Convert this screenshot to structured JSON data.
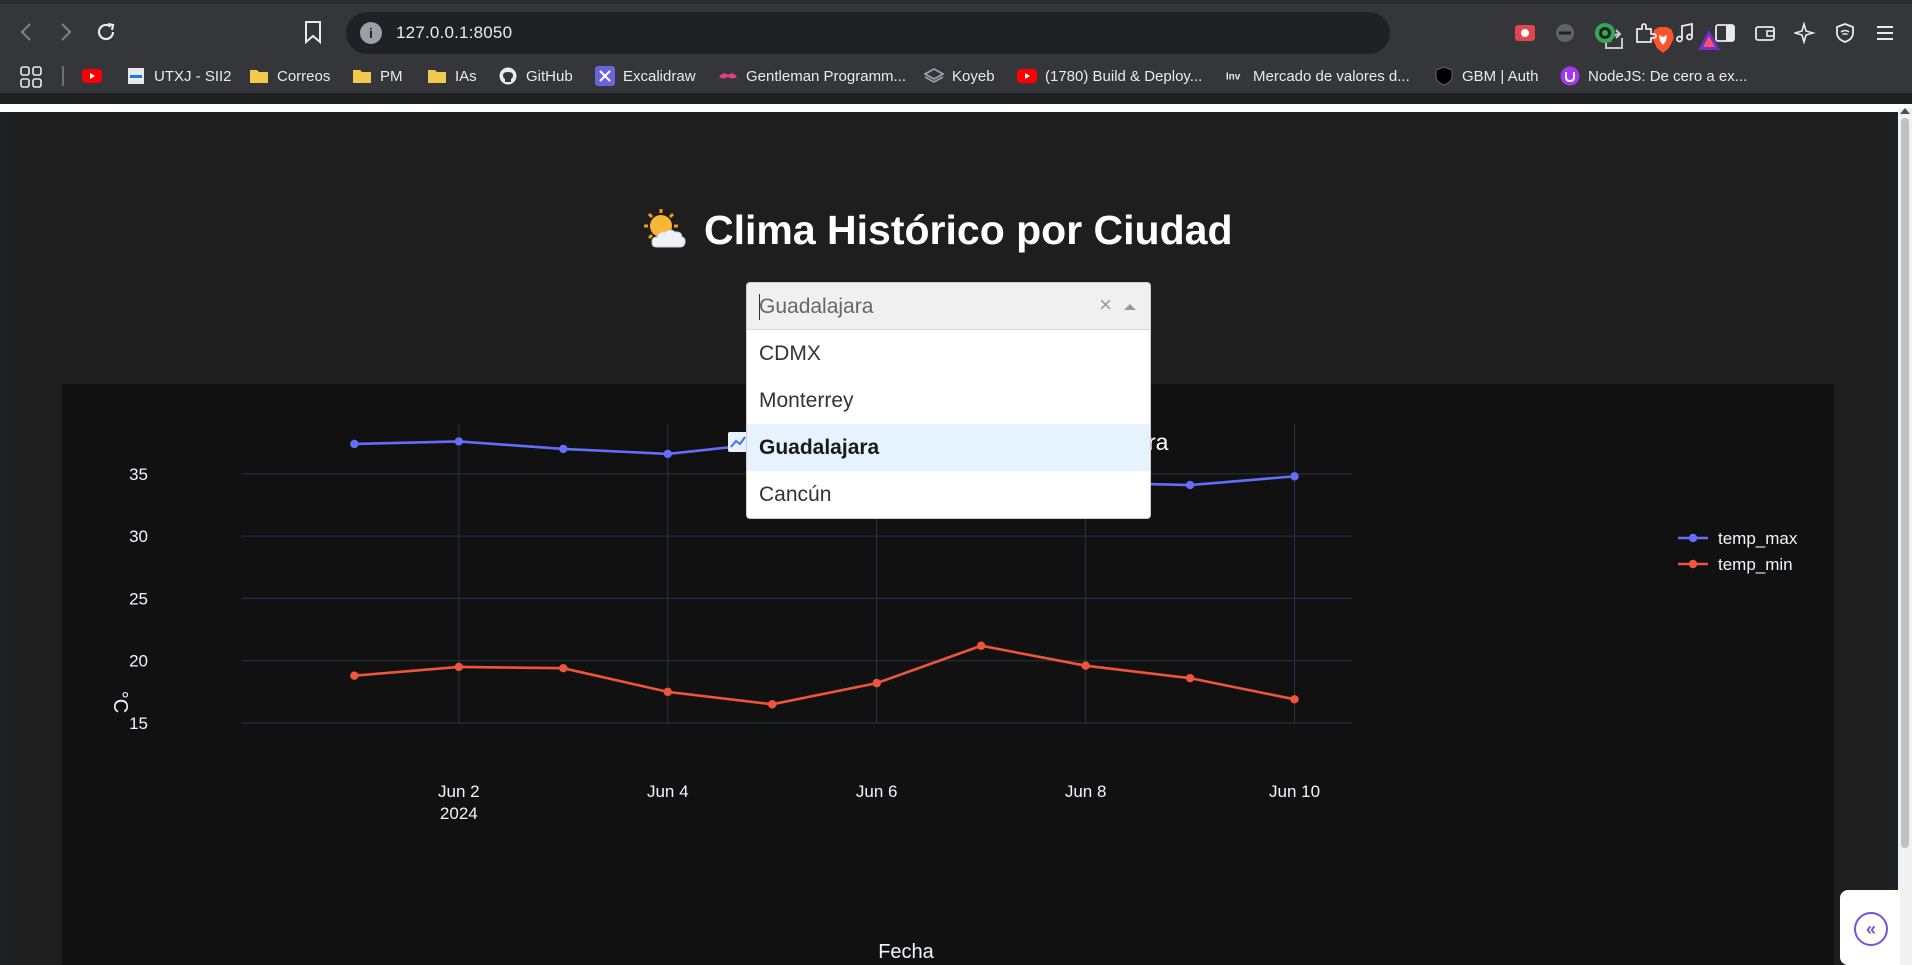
{
  "browser": {
    "url": "127.0.0.1:8050",
    "bookmarks": [
      {
        "label": "",
        "icon": "youtube-icon"
      },
      {
        "label": "UTXJ - SII2",
        "icon": "page-icon"
      },
      {
        "label": "Correos",
        "icon": "folder-icon"
      },
      {
        "label": "PM",
        "icon": "folder-icon"
      },
      {
        "label": "IAs",
        "icon": "folder-icon"
      },
      {
        "label": "GitHub",
        "icon": "github-icon"
      },
      {
        "label": "Excalidraw",
        "icon": "excalidraw-icon"
      },
      {
        "label": "Gentleman Programm...",
        "icon": "mustache-icon"
      },
      {
        "label": "Koyeb",
        "icon": "koyeb-icon"
      },
      {
        "label": "(1780) Build & Deploy...",
        "icon": "youtube-icon"
      },
      {
        "label": "Mercado de valores d...",
        "icon": "investing-icon"
      },
      {
        "label": "GBM | Auth",
        "icon": "shield-icon"
      },
      {
        "label": "NodeJS: De cero a ex...",
        "icon": "udemy-icon"
      }
    ]
  },
  "app": {
    "title": "Clima Histórico por Ciudad",
    "title_icon": "sun-behind-cloud-icon",
    "chart_title_suffix": "ra"
  },
  "dropdown": {
    "value": "Guadalajara",
    "clear_symbol": "×",
    "options": [
      "CDMX",
      "Monterrey",
      "Guadalajara",
      "Cancún"
    ],
    "selected_index": 2
  },
  "chart_data": {
    "type": "line",
    "x": [
      "2024-06-01",
      "2024-06-02",
      "2024-06-03",
      "2024-06-04",
      "2024-06-05",
      "2024-06-06",
      "2024-06-07",
      "2024-06-08",
      "2024-06-09",
      "2024-06-10"
    ],
    "series": [
      {
        "name": "temp_max",
        "color": "#636efa",
        "values": [
          37.4,
          37.6,
          37.0,
          36.6,
          37.5,
          37.0,
          34.7,
          34.3,
          34.1,
          34.8
        ]
      },
      {
        "name": "temp_min",
        "color": "#ef553b",
        "values": [
          18.8,
          19.5,
          19.4,
          17.5,
          16.5,
          18.2,
          21.2,
          19.6,
          18.6,
          16.9
        ]
      }
    ],
    "xlabel": "Fecha",
    "ylabel": "°C",
    "xticks": [
      {
        "date": "2024-06-02",
        "label": "Jun 2",
        "sublabel": "2024"
      },
      {
        "date": "2024-06-04",
        "label": "Jun 4",
        "sublabel": ""
      },
      {
        "date": "2024-06-06",
        "label": "Jun 6",
        "sublabel": ""
      },
      {
        "date": "2024-06-08",
        "label": "Jun 8",
        "sublabel": ""
      },
      {
        "date": "2024-06-10",
        "label": "Jun 10",
        "sublabel": ""
      }
    ],
    "yticks": [
      15,
      20,
      25,
      30,
      35
    ],
    "ylim": [
      15,
      39
    ],
    "grid": true,
    "legend_position": "top-right"
  }
}
